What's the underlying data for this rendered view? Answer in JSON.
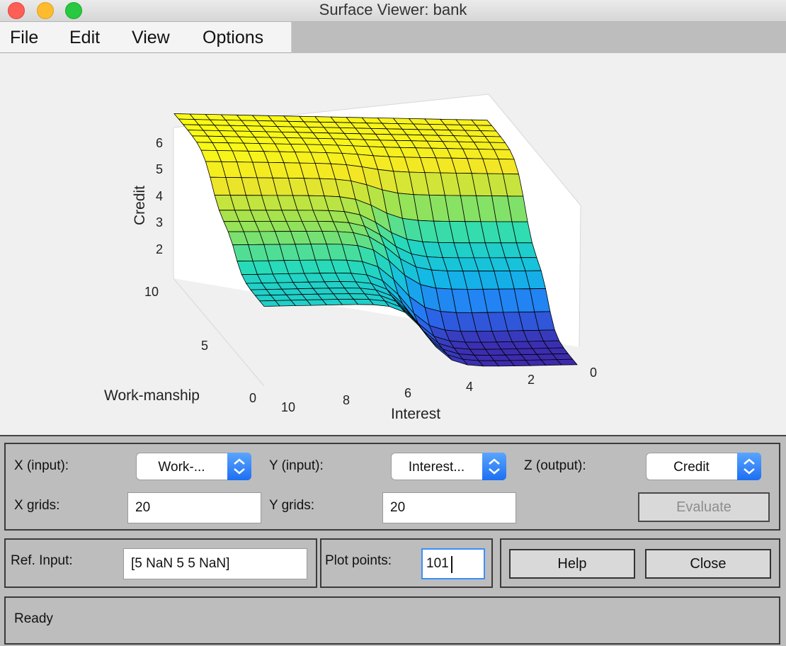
{
  "window": {
    "title": "Surface Viewer: bank",
    "controls": {
      "close_color": "#fd5f57",
      "minimize_color": "#febb2e",
      "zoom_color": "#28c840"
    }
  },
  "menu": {
    "file": "File",
    "edit": "Edit",
    "view": "View",
    "options": "Options"
  },
  "plot": {
    "zlabel": "Credit",
    "xlabel": "Interest",
    "ylabel": "Work-manship",
    "z_ticks": [
      "2",
      "3",
      "4",
      "5",
      "6"
    ],
    "x_ticks": [
      "10",
      "8",
      "6",
      "4",
      "2",
      "0"
    ],
    "y_ticks": [
      "10",
      "5",
      "0"
    ],
    "colormap": "parula",
    "grid": true
  },
  "controls": {
    "x_input_label": "X (input):",
    "x_input_value": "Work-...",
    "y_input_label": "Y (input):",
    "y_input_value": "Interest...",
    "z_output_label": "Z (output):",
    "z_output_value": "Credit",
    "x_grids_label": "X grids:",
    "x_grids_value": "20",
    "y_grids_label": "Y grids:",
    "y_grids_value": "20",
    "evaluate_label": "Evaluate",
    "ref_input_label": "Ref. Input:",
    "ref_input_value": "[5 NaN 5 5 NaN]",
    "plot_points_label": "Plot points:",
    "plot_points_value": "101",
    "help_label": "Help",
    "close_label": "Close"
  },
  "status": {
    "text": "Ready"
  }
}
